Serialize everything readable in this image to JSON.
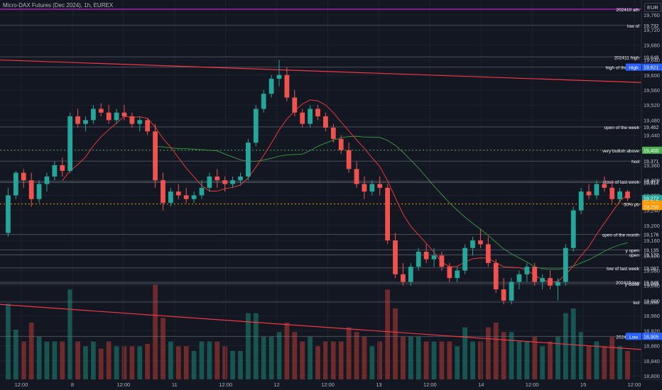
{
  "header": {
    "title": "Micro-DAX Futures (Dec 2024), 1h, EUREX"
  },
  "axis": {
    "currency": "EUR"
  },
  "colors": {
    "bg": "#131722",
    "grid": "#1e222d",
    "up": "#26a69a",
    "down": "#ef5350",
    "vol_up": "#1a5c57",
    "vol_down": "#7a2d2d",
    "level": "#787b86",
    "trend": "#f23645",
    "ath": "#9c27b0",
    "green_dot": "#4caf50",
    "orange_dot": "#ff9800",
    "ma_slow": "#388e3c",
    "ma_fast": "#e53935"
  },
  "chart_data": {
    "type": "candlestick",
    "instrument": "Micro-DAX Futures (Dec 2024)",
    "timeframe": "1h",
    "exchange": "EUREX",
    "ylim": [
      18800,
      19790
    ],
    "y_ticks": [
      19760,
      19720,
      19680,
      19640,
      19600,
      19560,
      19520,
      19480,
      19440,
      19400,
      19360,
      19320,
      19280,
      19240,
      19200,
      19160,
      19120,
      19080,
      19040,
      19000,
      18960,
      18920,
      18880,
      18840,
      18800
    ],
    "x_ticks": [
      "12:00",
      "8",
      "12:00",
      "11",
      "12:00",
      "12",
      "12:00",
      "13",
      "12:00",
      "14",
      "12:00",
      "15",
      "12:00"
    ],
    "candles": [
      [
        19180,
        19300,
        19170,
        19280
      ],
      [
        19280,
        19345,
        19270,
        19340
      ],
      [
        19340,
        19350,
        19300,
        19320
      ],
      [
        19320,
        19340,
        19250,
        19270
      ],
      [
        19270,
        19320,
        19260,
        19310
      ],
      [
        19310,
        19340,
        19290,
        19330
      ],
      [
        19330,
        19370,
        19320,
        19360
      ],
      [
        19360,
        19380,
        19330,
        19345
      ],
      [
        19345,
        19500,
        19340,
        19490
      ],
      [
        19490,
        19510,
        19460,
        19470
      ],
      [
        19470,
        19490,
        19450,
        19480
      ],
      [
        19480,
        19520,
        19470,
        19510
      ],
      [
        19510,
        19525,
        19490,
        19500
      ],
      [
        19500,
        19520,
        19470,
        19480
      ],
      [
        19480,
        19510,
        19470,
        19500
      ],
      [
        19500,
        19520,
        19480,
        19490
      ],
      [
        19490,
        19500,
        19460,
        19470
      ],
      [
        19470,
        19490,
        19450,
        19480
      ],
      [
        19480,
        19485,
        19440,
        19450
      ],
      [
        19450,
        19470,
        19300,
        19320
      ],
      [
        19320,
        19340,
        19240,
        19260
      ],
      [
        19260,
        19300,
        19250,
        19290
      ],
      [
        19290,
        19310,
        19270,
        19280
      ],
      [
        19280,
        19300,
        19260,
        19270
      ],
      [
        19270,
        19290,
        19260,
        19280
      ],
      [
        19280,
        19320,
        19270,
        19300
      ],
      [
        19300,
        19340,
        19290,
        19330
      ],
      [
        19330,
        19350,
        19300,
        19320
      ],
      [
        19320,
        19330,
        19290,
        19310
      ],
      [
        19310,
        19330,
        19300,
        19320
      ],
      [
        19320,
        19340,
        19310,
        19330
      ],
      [
        19330,
        19430,
        19320,
        19420
      ],
      [
        19420,
        19520,
        19410,
        19510
      ],
      [
        19510,
        19560,
        19500,
        19550
      ],
      [
        19550,
        19600,
        19540,
        19590
      ],
      [
        19590,
        19640,
        19570,
        19600
      ],
      [
        19600,
        19620,
        19530,
        19540
      ],
      [
        19540,
        19560,
        19490,
        19500
      ],
      [
        19500,
        19510,
        19460,
        19470
      ],
      [
        19470,
        19520,
        19460,
        19510
      ],
      [
        19510,
        19520,
        19480,
        19490
      ],
      [
        19490,
        19500,
        19450,
        19460
      ],
      [
        19460,
        19470,
        19420,
        19430
      ],
      [
        19430,
        19440,
        19390,
        19400
      ],
      [
        19400,
        19420,
        19340,
        19350
      ],
      [
        19350,
        19370,
        19300,
        19310
      ],
      [
        19310,
        19330,
        19270,
        19290
      ],
      [
        19290,
        19320,
        19280,
        19310
      ],
      [
        19310,
        19330,
        19280,
        19300
      ],
      [
        19300,
        19310,
        19150,
        19160
      ],
      [
        19160,
        19180,
        19060,
        19070
      ],
      [
        19070,
        19100,
        19040,
        19050
      ],
      [
        19050,
        19100,
        19040,
        19090
      ],
      [
        19090,
        19140,
        19080,
        19130
      ],
      [
        19130,
        19150,
        19100,
        19110
      ],
      [
        19110,
        19140,
        19090,
        19120
      ],
      [
        19120,
        19130,
        19080,
        19090
      ],
      [
        19090,
        19100,
        19050,
        19060
      ],
      [
        19060,
        19090,
        19050,
        19080
      ],
      [
        19080,
        19150,
        19070,
        19140
      ],
      [
        19140,
        19170,
        19120,
        19160
      ],
      [
        19160,
        19190,
        19140,
        19150
      ],
      [
        19150,
        19170,
        19090,
        19100
      ],
      [
        19100,
        19110,
        19020,
        19030
      ],
      [
        19030,
        19060,
        18990,
        19000
      ],
      [
        19000,
        19060,
        18990,
        19050
      ],
      [
        19050,
        19080,
        19030,
        19070
      ],
      [
        19070,
        19100,
        19050,
        19090
      ],
      [
        19090,
        19100,
        19040,
        19050
      ],
      [
        19050,
        19070,
        19030,
        19060
      ],
      [
        19060,
        19080,
        19030,
        19040
      ],
      [
        19040,
        19060,
        19000,
        19050
      ],
      [
        19050,
        19150,
        19040,
        19140
      ],
      [
        19140,
        19250,
        19130,
        19240
      ],
      [
        19240,
        19300,
        19230,
        19290
      ],
      [
        19290,
        19310,
        19270,
        19280
      ],
      [
        19280,
        19320,
        19270,
        19310
      ],
      [
        19310,
        19330,
        19290,
        19300
      ],
      [
        19300,
        19320,
        19260,
        19270
      ],
      [
        19270,
        19300,
        19260,
        19290
      ],
      [
        19290,
        19295,
        19265,
        19272
      ]
    ]
  },
  "levels": [
    {
      "label": "202410 ath",
      "price_label": "",
      "y": 19775
    },
    {
      "label": "low of",
      "price_label": "19,732",
      "y": 19732
    },
    {
      "label": "202411 high",
      "price_label": "19,648",
      "y": 19648
    },
    {
      "label": "high of the week",
      "price_label": "19,621",
      "y": 19621
    },
    {
      "label": "open of the week",
      "price_label": "19,462",
      "y": 19462
    },
    {
      "label": "very bullish above",
      "price_label": "19,400",
      "y": 19400
    },
    {
      "label": "hod",
      "price_label": "19,371",
      "y": 19371
    },
    {
      "label": "close of last week",
      "price_label": "19,317",
      "y": 19317
    },
    {
      "label": "",
      "price_label": "19,314",
      "y": 19314
    },
    {
      "label": "50% pb",
      "price_label": "19,257",
      "y": 19257
    },
    {
      "label": "open of the month",
      "price_label": "19,176",
      "y": 19176
    },
    {
      "label": "y open",
      "price_label": "19,135",
      "y": 19135
    },
    {
      "label": "open",
      "price_label": "19,122",
      "y": 19122
    },
    {
      "label": "low of last week",
      "price_label": "19,087",
      "y": 19087
    },
    {
      "label": "202410 low",
      "price_label": "19,049",
      "y": 19049
    },
    {
      "label": "y close",
      "price_label": "19,045",
      "y": 19045
    },
    {
      "label": "lod",
      "price_label": "18,996",
      "y": 18996
    },
    {
      "label": "202411 low",
      "price_label": "18,905",
      "y": 18905
    }
  ],
  "badges": [
    {
      "label": "High",
      "value": "19,621",
      "y": 19621,
      "bg": "#2962ff"
    },
    {
      "label": "",
      "value": "19,400",
      "y": 19400,
      "bg": "#4caf50"
    },
    {
      "label": "",
      "value": "19,272",
      "y": 19272,
      "bg": "#26a69a"
    },
    {
      "label": "",
      "value": "19,257",
      "y": 19257,
      "bg": "#ff9800"
    },
    {
      "label": "",
      "value": "19,250",
      "y": 19250,
      "bg": "#ff9800"
    },
    {
      "label": "Low",
      "value": "18,905",
      "y": 18905,
      "bg": "#2962ff"
    }
  ],
  "trendlines": [
    {
      "name": "upper",
      "from": [
        0,
        19640
      ],
      "to": [
        1,
        19580
      ]
    },
    {
      "name": "lower",
      "from": [
        0,
        18990
      ],
      "to": [
        1,
        18870
      ]
    }
  ]
}
